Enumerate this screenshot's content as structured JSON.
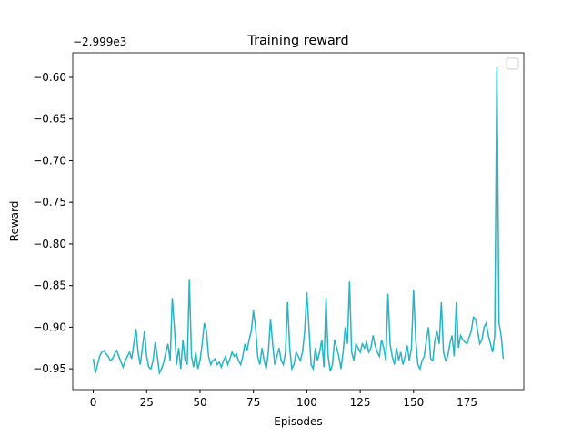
{
  "chart_data": {
    "type": "line",
    "title": "Training reward",
    "xlabel": "Episodes",
    "ylabel": "Reward",
    "y_offset_text": "−2.999e3",
    "x": [
      0,
      1,
      2,
      3,
      4,
      5,
      6,
      7,
      8,
      9,
      10,
      11,
      12,
      13,
      14,
      15,
      16,
      17,
      18,
      19,
      20,
      21,
      22,
      23,
      24,
      25,
      26,
      27,
      28,
      29,
      30,
      31,
      32,
      33,
      34,
      35,
      36,
      37,
      38,
      39,
      40,
      41,
      42,
      43,
      44,
      45,
      46,
      47,
      48,
      49,
      50,
      51,
      52,
      53,
      54,
      55,
      56,
      57,
      58,
      59,
      60,
      61,
      62,
      63,
      64,
      65,
      66,
      67,
      68,
      69,
      70,
      71,
      72,
      73,
      74,
      75,
      76,
      77,
      78,
      79,
      80,
      81,
      82,
      83,
      84,
      85,
      86,
      87,
      88,
      89,
      90,
      91,
      92,
      93,
      94,
      95,
      96,
      97,
      98,
      99,
      100,
      101,
      102,
      103,
      104,
      105,
      106,
      107,
      108,
      109,
      110,
      111,
      112,
      113,
      114,
      115,
      116,
      117,
      118,
      119,
      120,
      121,
      122,
      123,
      124,
      125,
      126,
      127,
      128,
      129,
      130,
      131,
      132,
      133,
      134,
      135,
      136,
      137,
      138,
      139,
      140,
      141,
      142,
      143,
      144,
      145,
      146,
      147,
      148,
      149,
      150,
      151,
      152,
      153,
      154,
      155,
      156,
      157,
      158,
      159,
      160,
      161,
      162,
      163,
      164,
      165,
      166,
      167,
      168,
      169,
      170,
      171,
      172,
      173,
      174,
      175,
      176,
      177,
      178,
      179,
      180,
      181,
      182,
      183,
      184,
      185,
      186,
      187,
      188,
      189,
      190,
      191,
      192
    ],
    "series": [
      {
        "color": "#24b5c6",
        "values": [
          -0.938,
          -0.955,
          -0.945,
          -0.935,
          -0.93,
          -0.928,
          -0.932,
          -0.935,
          -0.94,
          -0.938,
          -0.932,
          -0.928,
          -0.935,
          -0.942,
          -0.948,
          -0.94,
          -0.935,
          -0.93,
          -0.938,
          -0.92,
          -0.902,
          -0.93,
          -0.945,
          -0.925,
          -0.905,
          -0.935,
          -0.948,
          -0.95,
          -0.94,
          -0.918,
          -0.935,
          -0.955,
          -0.95,
          -0.942,
          -0.93,
          -0.92,
          -0.94,
          -0.865,
          -0.9,
          -0.945,
          -0.925,
          -0.95,
          -0.915,
          -0.94,
          -0.945,
          -0.843,
          -0.935,
          -0.948,
          -0.93,
          -0.95,
          -0.94,
          -0.92,
          -0.895,
          -0.905,
          -0.935,
          -0.945,
          -0.94,
          -0.938,
          -0.945,
          -0.942,
          -0.948,
          -0.94,
          -0.935,
          -0.945,
          -0.938,
          -0.93,
          -0.935,
          -0.932,
          -0.94,
          -0.945,
          -0.935,
          -0.92,
          -0.928,
          -0.915,
          -0.905,
          -0.88,
          -0.9,
          -0.935,
          -0.945,
          -0.925,
          -0.94,
          -0.95,
          -0.93,
          -0.89,
          -0.92,
          -0.945,
          -0.935,
          -0.925,
          -0.94,
          -0.945,
          -0.93,
          -0.87,
          -0.925,
          -0.95,
          -0.945,
          -0.93,
          -0.935,
          -0.94,
          -0.93,
          -0.905,
          -0.858,
          -0.9,
          -0.945,
          -0.95,
          -0.925,
          -0.94,
          -0.93,
          -0.915,
          -0.948,
          -0.865,
          -0.935,
          -0.953,
          -0.945,
          -0.915,
          -0.925,
          -0.935,
          -0.95,
          -0.93,
          -0.9,
          -0.92,
          -0.845,
          -0.93,
          -0.94,
          -0.92,
          -0.925,
          -0.93,
          -0.92,
          -0.925,
          -0.918,
          -0.93,
          -0.925,
          -0.91,
          -0.922,
          -0.93,
          -0.935,
          -0.915,
          -0.925,
          -0.94,
          -0.86,
          -0.92,
          -0.935,
          -0.945,
          -0.925,
          -0.94,
          -0.93,
          -0.945,
          -0.935,
          -0.922,
          -0.94,
          -0.925,
          -0.855,
          -0.915,
          -0.945,
          -0.95,
          -0.94,
          -0.935,
          -0.915,
          -0.9,
          -0.938,
          -0.94,
          -0.915,
          -0.905,
          -0.92,
          -0.87,
          -0.93,
          -0.94,
          -0.935,
          -0.92,
          -0.91,
          -0.935,
          -0.87,
          -0.925,
          -0.91,
          -0.915,
          -0.918,
          -0.92,
          -0.912,
          -0.905,
          -0.888,
          -0.89,
          -0.905,
          -0.92,
          -0.915,
          -0.9,
          -0.895,
          -0.91,
          -0.92,
          -0.93,
          -0.91,
          -0.588,
          -0.895,
          -0.91,
          -0.938
        ]
      }
    ],
    "xlim": [
      -9.6,
      201.6
    ],
    "xticks": [
      0,
      25,
      50,
      75,
      100,
      125,
      150,
      175
    ],
    "ylim": [
      -0.975,
      -0.5705
    ],
    "yticks": [
      {
        "value": -0.95,
        "label": "−0.95"
      },
      {
        "value": -0.9,
        "label": "−0.90"
      },
      {
        "value": -0.85,
        "label": "−0.85"
      },
      {
        "value": -0.8,
        "label": "−0.80"
      },
      {
        "value": -0.75,
        "label": "−0.75"
      },
      {
        "value": -0.7,
        "label": "−0.70"
      },
      {
        "value": -0.65,
        "label": "−0.65"
      },
      {
        "value": -0.6,
        "label": "−0.60"
      }
    ],
    "grid": false
  }
}
